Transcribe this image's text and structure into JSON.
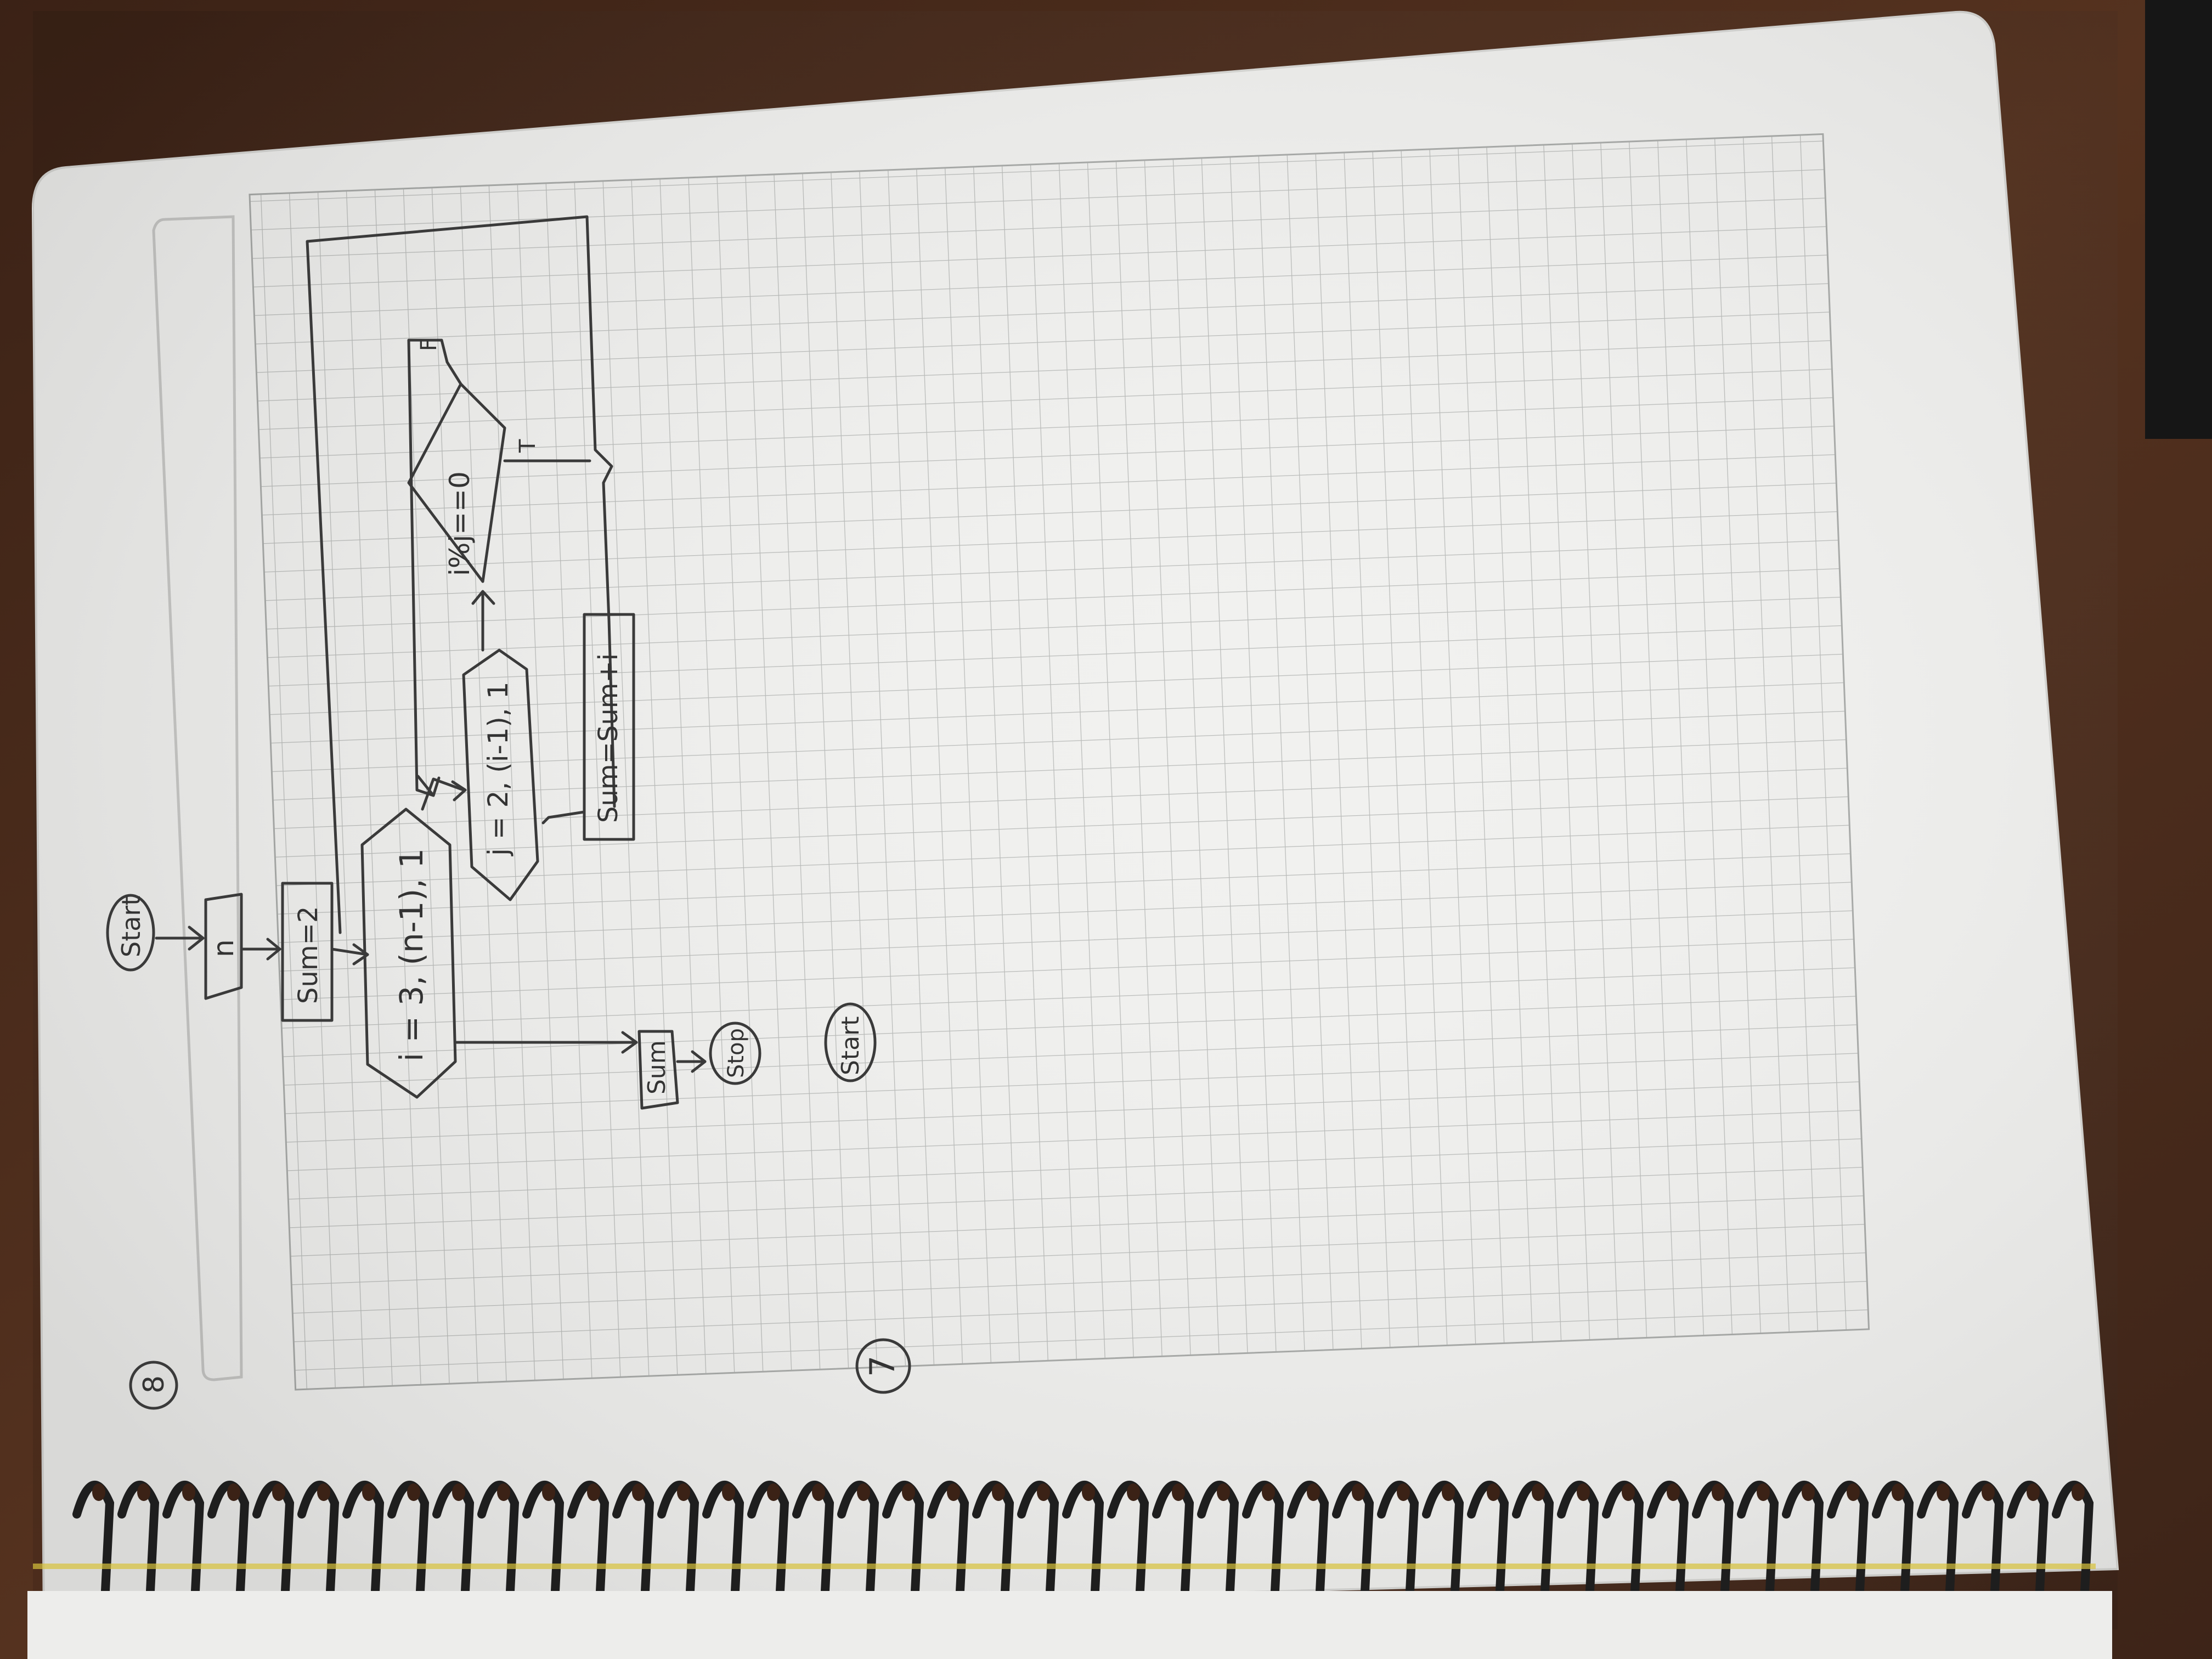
{
  "notebook": {
    "page_number_top": "8",
    "page_number_bottom": "7",
    "colors": {
      "desk": "#4a2c1d",
      "paper": "#f1f1ef",
      "grid": "#b9bbb9",
      "ink": "#3a3a3a",
      "spiral": "#1e1e1e"
    }
  },
  "flowchart_8": {
    "start": "Start",
    "input": "n",
    "init": "Sum=2",
    "outer_loop": "i = 3, (n-1), 1",
    "inner_loop": "j = 2, (i-1), 1",
    "condition": "i%j==0",
    "false_label": "F",
    "true_label": "T",
    "update": "Sum=Sum+i",
    "output": "Sum",
    "stop": "Stop"
  },
  "flowchart_7": {
    "start": "Start"
  }
}
